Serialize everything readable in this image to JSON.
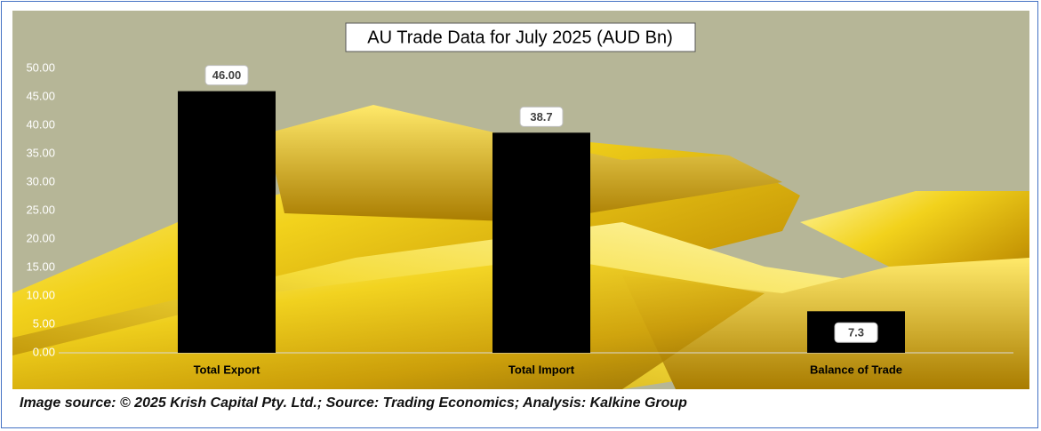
{
  "chart_data": {
    "type": "bar",
    "title": "AU Trade Data for July 2025 (AUD Bn)",
    "categories": [
      "Total Export",
      "Total Import",
      "Balance of Trade"
    ],
    "values": [
      46,
      38.7,
      7.3
    ],
    "value_labels": [
      "46.00",
      "38.7",
      "7.3"
    ],
    "color": "#000000",
    "ylim": [
      0,
      50
    ],
    "yticks": [
      {
        "value": 0,
        "label": "0.00"
      },
      {
        "value": 5,
        "label": "5.00"
      },
      {
        "value": 10,
        "label": "10.00"
      },
      {
        "value": 15,
        "label": "15.00"
      },
      {
        "value": 20,
        "label": "20.00"
      },
      {
        "value": 25,
        "label": "25.00"
      },
      {
        "value": 30,
        "label": "30.00"
      },
      {
        "value": 35,
        "label": "35.00"
      },
      {
        "value": 40,
        "label": "40.00"
      },
      {
        "value": 45,
        "label": "45.00"
      },
      {
        "value": 50,
        "label": "50.00"
      }
    ],
    "grid": false
  },
  "source": "Image source: © 2025 Krish Capital Pty. Ltd.; Source: Trading Economics; Analysis: Kalkine Group"
}
